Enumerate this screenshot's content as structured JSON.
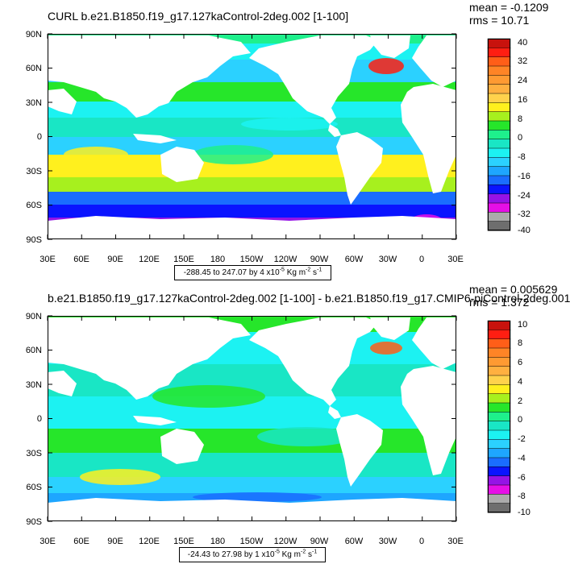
{
  "colors": {
    "land": "#ffffff",
    "legend": [
      "#ababab",
      "#e60fe6",
      "#9513e6",
      "#0a14ff",
      "#1a6dff",
      "#1ea6ff",
      "#2bd1ff",
      "#1cf2f2",
      "#19e6c5",
      "#1ef08c",
      "#26e62a",
      "#a7f01e",
      "#fff01e",
      "#ffd24c",
      "#ffb040",
      "#ff9a32",
      "#ff8426",
      "#ff5e18",
      "#ff1e12",
      "#c8120d"
    ]
  },
  "axes": {
    "lat_labels": [
      "90N",
      "60N",
      "30N",
      "0",
      "30S",
      "60S",
      "90S"
    ],
    "lon_labels": [
      "30E",
      "60E",
      "90E",
      "120E",
      "150E",
      "180",
      "150W",
      "120W",
      "90W",
      "60W",
      "30W",
      "0",
      "30E"
    ]
  },
  "panels": [
    {
      "title": "CURL b.e21.B1850.f19_g17.127kaControl-2deg.002 [1-100]",
      "mean_text": "mean = -0.1209",
      "rms_text": "rms = 10.71",
      "range": {
        "text": "-288.45 to 247.07 by 4 x10",
        "exp": "-5",
        "units": " Kg m",
        "units_exp": "-2",
        "tail": " s",
        "tail_exp": "-1"
      },
      "colorbar_labels": [
        "40",
        "32",
        "24",
        "16",
        "8",
        "0",
        "-8",
        "-16",
        "-24",
        "-32",
        "-40"
      ]
    },
    {
      "title": "b.e21.B1850.f19_g17.127kaControl-2deg.002 [1-100] - b.e21.B1850.f19_g17.CMIP6-piControl-2deg.001",
      "mean_text": "mean = 0.005629",
      "rms_text": "rms = 1.372",
      "range": {
        "text": "-24.43 to 27.98 by 1 x10",
        "exp": "-5",
        "units": " Kg m",
        "units_exp": "-2",
        "tail": " s",
        "tail_exp": "-1"
      },
      "colorbar_labels": [
        "10",
        "8",
        "6",
        "4",
        "2",
        "0",
        "-2",
        "-4",
        "-6",
        "-8",
        "-10"
      ]
    }
  ]
}
